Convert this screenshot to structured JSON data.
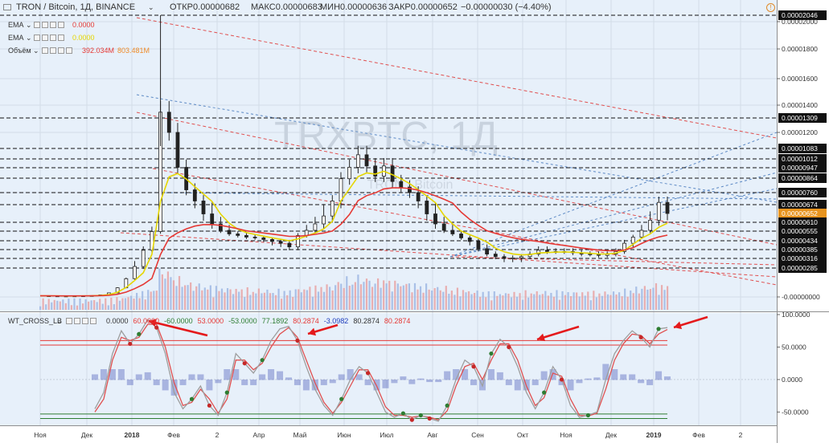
{
  "header": {
    "symbol": "TRON / Bitcoin, 1Д, BINANCE",
    "open": "ОТКР0.00000682",
    "high": "МАКС0.00000683",
    "low": "МИН0.00000636",
    "close": "ЗАКР0.00000652",
    "change": "−0.00000030 (−4.40%)"
  },
  "indicators": [
    {
      "name": "EMA",
      "value": "0.0000",
      "color": "#e53935"
    },
    {
      "name": "EMA",
      "value": "0.0000",
      "color": "#e6d600"
    },
    {
      "name": "Объём",
      "value": "392.034M",
      "value2": "803.481M",
      "color": "#e53935",
      "color2": "#ef8c2b"
    }
  ],
  "watermark": {
    "symbol": "TRXBTC, 1Д",
    "name": "TRON / Bitcoin"
  },
  "oscillator": {
    "name": "WT_CROSS_LB",
    "values": [
      "0.0000",
      "60.0000",
      "-60.0000",
      "53.0000",
      "-53.0000",
      "77.1892",
      "80.2874",
      "-3.0982",
      "80.2874",
      "80.2874"
    ],
    "colors": [
      "#333333",
      "#e53935",
      "#2e7d32",
      "#e53935",
      "#2e7d32",
      "#2e7d32",
      "#e53935",
      "#1e3dbd",
      "#333333",
      "#e53935"
    ]
  },
  "colors": {
    "background": "#ffffff",
    "chart_bg": "#e7f0fa",
    "candle": "#222222",
    "ema_slow": "#e53935",
    "ema_fast": "#e6d600",
    "trend_red": "#e05050",
    "trend_blue": "#5b88c4",
    "hline": "#111111",
    "arrow": "#e41a1c",
    "wt1": "#9e9e9e",
    "wt2": "#4caf50",
    "osc_hist": "#5c6bc0"
  },
  "chart_data": [
    {
      "type": "candlestick",
      "title": "TRON / Bitcoin, 1Д, BINANCE",
      "y_axis_side": "right",
      "x": [
        "Ноя",
        "Дек",
        "2018",
        "Фев",
        "2",
        "Апр",
        "Май",
        "Июн",
        "Июл",
        "Авг",
        "Сен",
        "Окт",
        "Ноя",
        "Дек",
        "2019",
        "Фев",
        "2"
      ],
      "x_tick_labels": [
        "Ноя",
        "Дек",
        "2018",
        "Фев",
        "2",
        "Апр",
        "Май",
        "Июн",
        "Июл",
        "Авг",
        "Сен",
        "Окт",
        "Ноя",
        "Дек",
        "2019",
        "Фев",
        "2"
      ],
      "y_tick_labels": [
        "0.00002046",
        "0.00002000",
        "0.00001800",
        "0.00001600",
        "0.00001400",
        "0.00001309",
        "0.00001200",
        "0.00001083",
        "0.00001012",
        "0.00000947",
        "0.00000864",
        "0.00000760",
        "0.00000674",
        "0.00000652",
        "0.00000610",
        "0.00000555",
        "0.00000434",
        "0.00000385",
        "0.00000316",
        "0.00000285",
        "-0.00000000"
      ],
      "horizontal_levels": [
        2.046e-05,
        1.309e-05,
        1.083e-05,
        1.012e-05,
        9.47e-06,
        8.64e-06,
        7.6e-06,
        6.74e-06,
        6.1e-06,
        5.55e-06,
        4.34e-06,
        3.85e-06,
        3.16e-06,
        2.85e-06
      ],
      "last_price": 6.52e-06,
      "ylim": [
        0,
        2.06e-05
      ],
      "close_series": [
        1.1e-07,
        1e-07,
        9e-08,
        9e-08,
        1e-07,
        1.1e-07,
        1.3e-07,
        2e-07,
        4e-07,
        9e-07,
        1.8e-06,
        2.9e-06,
        3.8e-06,
        5.5e-06,
        1.35e-05,
        1.2e-05,
        9.5e-06,
        7.8e-06,
        7e-06,
        6.5e-06,
        6e-06,
        5.6e-06,
        5.2e-06,
        5e-06,
        4.8e-06,
        4.7e-06,
        4.5e-06,
        4.3e-06,
        4.2e-06,
        4e-06,
        5e-06,
        5.6e-06,
        6e-06,
        6.4e-06,
        7e-06,
        8.6e-06,
        9.5e-06,
        1.04e-05,
        9.6e-06,
        8.8e-06,
        9.6e-06,
        8.4e-06,
        8e-06,
        7.6e-06,
        7e-06,
        6.5e-06,
        6e-06,
        5.6e-06,
        5.2e-06,
        4.7e-06,
        4.3e-06,
        3.9e-06,
        3.5e-06,
        3.3e-06,
        3.2e-06,
        3.2e-06,
        3.3e-06,
        3.5e-06,
        3.8e-06,
        3.7e-06,
        3.7e-06,
        3.7e-06,
        3.6e-06,
        3.5e-06,
        3.5e-06,
        3.4e-06,
        3.5e-06,
        3.7e-06,
        4.2e-06,
        4.8e-06,
        5.6e-06,
        6.2e-06,
        6.9e-06,
        6.52e-06
      ]
    },
    {
      "type": "line",
      "title": "WT_CROSS_LB",
      "y_tick_labels": [
        "100.0000",
        "50.0000",
        "0.0000",
        "-50.0000"
      ],
      "ylim": [
        -68,
        100
      ],
      "levels": [
        60,
        53,
        -53,
        -60
      ],
      "x_tick_labels": [
        "Ноя",
        "Дек",
        "2018",
        "Фев",
        "2",
        "Апр",
        "Май",
        "Июн",
        "Июл",
        "Авг",
        "Сен",
        "Окт",
        "Ноя",
        "Дек",
        "2019",
        "Фев",
        "2"
      ],
      "wt1": [
        -45,
        -20,
        40,
        75,
        55,
        70,
        92,
        80,
        40,
        -20,
        -45,
        -30,
        -10,
        -40,
        -55,
        -20,
        40,
        25,
        10,
        30,
        60,
        78,
        82,
        60,
        20,
        -15,
        -40,
        -55,
        -30,
        0,
        20,
        10,
        -20,
        -50,
        -58,
        -52,
        -62,
        -55,
        -60,
        -64,
        -40,
        0,
        30,
        20,
        -10,
        40,
        62,
        50,
        20,
        -20,
        -45,
        -20,
        20,
        0,
        -40,
        -58,
        -55,
        -50,
        0,
        40,
        60,
        75,
        65,
        50,
        78,
        80
      ],
      "wt2": [
        -50,
        -30,
        30,
        65,
        60,
        65,
        85,
        85,
        50,
        -5,
        -40,
        -35,
        -15,
        -30,
        -52,
        -30,
        30,
        30,
        15,
        25,
        50,
        70,
        80,
        65,
        30,
        -5,
        -35,
        -52,
        -35,
        -10,
        15,
        15,
        -10,
        -42,
        -55,
        -55,
        -58,
        -56,
        -58,
        -62,
        -48,
        -10,
        20,
        25,
        0,
        30,
        55,
        55,
        30,
        -10,
        -40,
        -28,
        10,
        5,
        -30,
        -55,
        -56,
        -52,
        -15,
        30,
        55,
        70,
        68,
        55,
        70,
        77
      ],
      "series": [
        {
          "name": "60.0000",
          "value": 60
        },
        {
          "name": "-60.0000",
          "value": -60
        },
        {
          "name": "53.0000",
          "value": 53
        },
        {
          "name": "-53.0000",
          "value": -53
        }
      ]
    }
  ],
  "annotations": {
    "arrows_count": 5
  }
}
